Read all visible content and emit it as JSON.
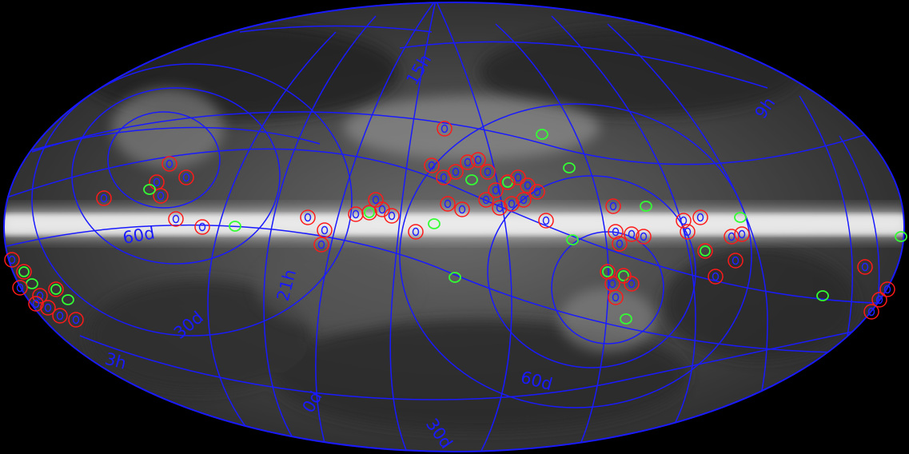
{
  "map": {
    "projection": "mollweide",
    "background_color": "#000000",
    "grid_color": "#1a1aff",
    "marker_colors": {
      "outer_ring": "#ff1a1a",
      "inner_ring": "#2222ff",
      "highlight_ring": "#33ff33"
    },
    "grid_labels": {
      "ra_15h": "15h",
      "ra_9h": "9h",
      "ra_21h": "21h",
      "ra_3h": "3h",
      "dec_60d_left": "60d",
      "dec_30d_left": "30d",
      "dec_0d": "0d",
      "dec_60d_right": "60d",
      "dec_30d_bottom": "30d"
    }
  }
}
